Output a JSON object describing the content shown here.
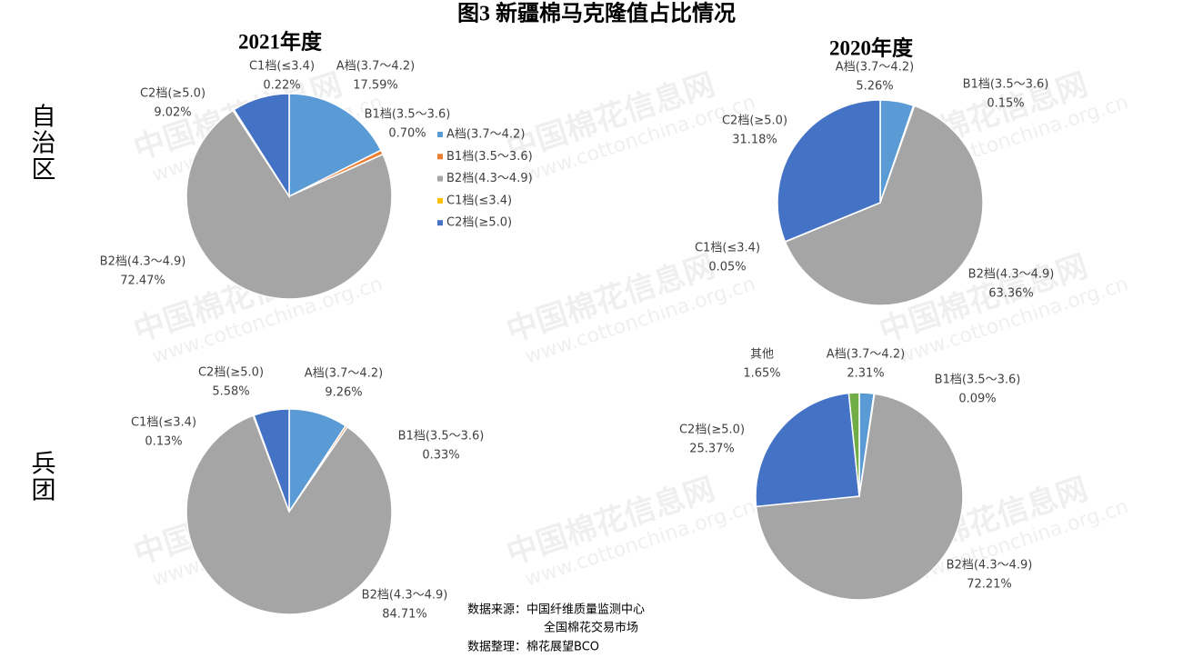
{
  "title": "图3 新疆棉马克隆值占比情况",
  "row_labels": [
    "自治区",
    "兵团"
  ],
  "watermark": [
    "中国棉花信息网",
    "www.cottonchina.org.cn"
  ],
  "notes": [
    "数据来源：中国纤维质量监测中心",
    "全国棉花交易市场",
    "数据整理：棉花展望BCO"
  ],
  "chart_data": [
    {
      "type": "pie",
      "title": "2021年度",
      "legend": "right",
      "categories": [
        "A档(3.7～4.2)",
        "B1档(3.5～3.6)",
        "B2档(4.3～4.9)",
        "C1档(≤3.4)",
        "C2档(≥5.0)"
      ],
      "values": [
        17.59,
        0.7,
        72.47,
        0.22,
        9.02
      ],
      "value_labels": [
        "17.59%",
        "0.70%",
        "72.47%",
        "0.22%",
        "9.02%"
      ],
      "colors": [
        "#5b9bd5",
        "#ed7d31",
        "#a5a5a5",
        "#ffc000",
        "#4472c4"
      ]
    },
    {
      "type": "pie",
      "title": "2020年度",
      "categories": [
        "A档(3.7～4.2)",
        "B1档(3.5～3.6)",
        "B2档(4.3～4.9)",
        "C1档(≤3.4)",
        "C2档(≥5.0)"
      ],
      "values": [
        5.26,
        0.15,
        63.36,
        0.05,
        31.18
      ],
      "value_labels": [
        "5.26%",
        "0.15%",
        "63.36%",
        "0.05%",
        "31.18%"
      ],
      "colors": [
        "#5b9bd5",
        "#ed7d31",
        "#a5a5a5",
        "#ffc000",
        "#4472c4"
      ]
    },
    {
      "type": "pie",
      "categories": [
        "A档(3.7～4.2)",
        "B1档(3.5～3.6)",
        "B2档(4.3～4.9)",
        "C1档(≤3.4)",
        "C2档(≥5.0)"
      ],
      "values": [
        9.26,
        0.33,
        84.71,
        0.13,
        5.58
      ],
      "value_labels": [
        "9.26%",
        "0.33%",
        "84.71%",
        "0.13%",
        "5.58%"
      ],
      "colors": [
        "#5b9bd5",
        "#ed7d31",
        "#a5a5a5",
        "#ffc000",
        "#4472c4"
      ]
    },
    {
      "type": "pie",
      "categories": [
        "A档(3.7～4.2)",
        "B1档(3.5～3.6)",
        "B2档(4.3～4.9)",
        "C2档(≥5.0)",
        "其他"
      ],
      "values": [
        2.31,
        0.09,
        72.21,
        25.37,
        1.65
      ],
      "value_labels": [
        "2.31%",
        "0.09%",
        "72.21%",
        "25.37%",
        "1.65%"
      ],
      "colors": [
        "#5b9bd5",
        "#ed7d31",
        "#a5a5a5",
        "#4472c4",
        "#70ad47"
      ]
    }
  ]
}
